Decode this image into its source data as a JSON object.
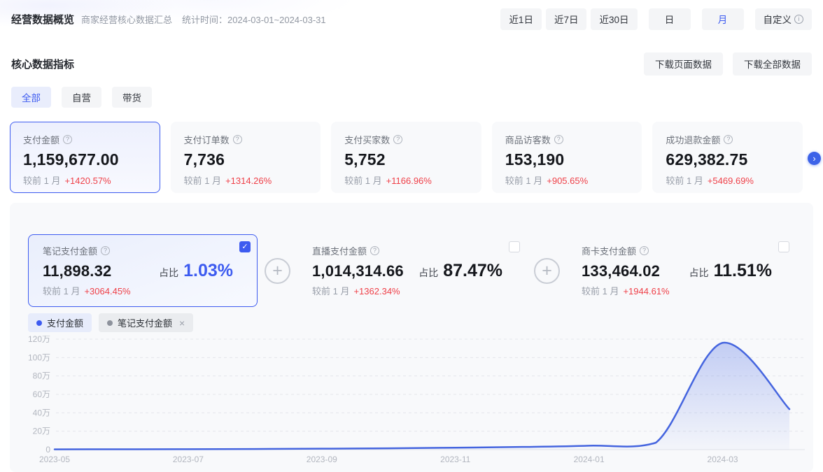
{
  "header": {
    "title": "经营数据概览",
    "subtitle": "商家经营核心数据汇总",
    "stat_time": "统计时间：2024-03-01~2024-03-31",
    "range_buttons": [
      {
        "label": "近1日",
        "active": false,
        "group2": false
      },
      {
        "label": "近7日",
        "active": false,
        "group2": false
      },
      {
        "label": "近30日",
        "active": false,
        "group2": false
      },
      {
        "label": "日",
        "active": false,
        "group2": true
      },
      {
        "label": "月",
        "active": true,
        "group2": true
      },
      {
        "label": "自定义",
        "active": false,
        "group2": true,
        "trailing_icon": "info"
      }
    ]
  },
  "section": {
    "title": "核心数据指标",
    "download_page_label": "下载页面数据",
    "download_all_label": "下载全部数据",
    "tabs": [
      {
        "label": "全部",
        "active": true
      },
      {
        "label": "自营",
        "active": false
      },
      {
        "label": "带货",
        "active": false
      }
    ]
  },
  "metric_cards": [
    {
      "label": "支付金额",
      "value": "1,159,677.00",
      "compare_label": "较前 1 月",
      "change": "+1420.57%",
      "selected": true
    },
    {
      "label": "支付订单数",
      "value": "7,736",
      "compare_label": "较前 1 月",
      "change": "+1314.26%",
      "selected": false
    },
    {
      "label": "支付买家数",
      "value": "5,752",
      "compare_label": "较前 1 月",
      "change": "+1166.96%",
      "selected": false
    },
    {
      "label": "商品访客数",
      "value": "153,190",
      "compare_label": "较前 1 月",
      "change": "+905.65%",
      "selected": false
    },
    {
      "label": "成功退款金额",
      "value": "629,382.75",
      "compare_label": "较前 1 月",
      "change": "+5469.69%",
      "selected": false
    }
  ],
  "sub_cards": [
    {
      "label": "笔记支付金额",
      "value": "11,898.32",
      "ratio_label": "占比",
      "ratio": "1.03%",
      "compare_label": "较前 1 月",
      "change": "+3064.45%",
      "checked": true
    },
    {
      "label": "直播支付金额",
      "value": "1,014,314.66",
      "ratio_label": "占比",
      "ratio": "87.47%",
      "compare_label": "较前 1 月",
      "change": "+1362.34%",
      "checked": false
    },
    {
      "label": "商卡支付金额",
      "value": "133,464.02",
      "ratio_label": "占比",
      "ratio": "11.51%",
      "compare_label": "较前 1 月",
      "change": "+1944.61%",
      "checked": false
    }
  ],
  "legend": [
    {
      "label": "支付金额",
      "dot_color": "#3d5bf0",
      "active": true,
      "closable": false
    },
    {
      "label": "笔记支付金额",
      "dot_color": "#8d929c",
      "active": false,
      "closable": true
    }
  ],
  "chart_data": {
    "type": "area",
    "title": "支付金额趋势",
    "x": [
      "2023-05",
      "2023-06",
      "2023-07",
      "2023-08",
      "2023-09",
      "2023-10",
      "2023-11",
      "2023-12",
      "2024-01",
      "2024-02",
      "2024-03",
      "2024-04"
    ],
    "series": [
      {
        "name": "支付金额",
        "unit": "万",
        "values_wan": [
          0.3,
          0.4,
          0.5,
          0.7,
          1.0,
          1.4,
          2.1,
          2.9,
          4.3,
          7.5,
          116.0,
          44.0
        ]
      }
    ],
    "y_ticks": [
      "120万",
      "100万",
      "80万",
      "60万",
      "40万",
      "20万",
      "0"
    ],
    "x_tick_labels": [
      "2023-05",
      "2023-07",
      "2023-09",
      "2023-11",
      "2024-01",
      "2024-03"
    ],
    "ylim_wan": [
      0,
      120
    ],
    "grid": "dashed-horizontal",
    "legend_position": "top-left-chips",
    "line_color": "#4565df"
  },
  "icons": {
    "help": "?",
    "info": "i",
    "check": "✓",
    "plus": "+",
    "close": "×",
    "chevron_right": "›"
  },
  "colors": {
    "accent_blue": "#3d5bf0",
    "change_up_red": "#ef4048",
    "card_bg": "#f8f9fb",
    "selected_card_bg": "#edf0fd",
    "line_blue": "#4565df"
  }
}
